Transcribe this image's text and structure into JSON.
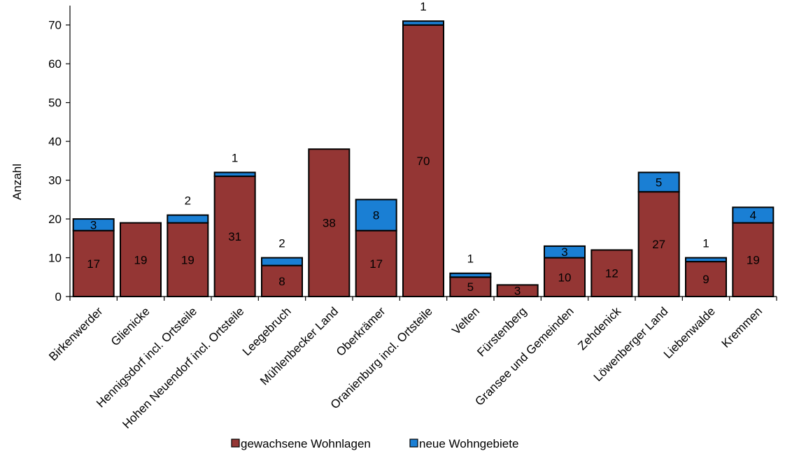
{
  "chart_data": {
    "type": "bar",
    "stacked": true,
    "categories": [
      "Birkenwerder",
      "Glienicke",
      "Hennigsdorf incl. Ortsteile",
      "Hohen Neuendorf incl. Ortsteile",
      "Leegebruch",
      "Mühlenbecker Land",
      "Oberkrämer",
      "Oranienburg incl. Ortsteile",
      "Velten",
      "Fürstenberg",
      "Gransee und Gemeinden",
      "Zehdenick",
      "Löwenberger Land",
      "Liebenwalde",
      "Kremmen"
    ],
    "series": [
      {
        "name": "gewachsene Wohnlagen",
        "color": "#943634",
        "values": [
          17,
          19,
          19,
          31,
          8,
          38,
          17,
          70,
          5,
          3,
          10,
          12,
          27,
          9,
          19
        ],
        "labels": [
          "17",
          "19",
          "19",
          "31",
          "8",
          "38",
          "17",
          "70",
          "5",
          "3",
          "10",
          "12",
          "27",
          "9",
          "19"
        ]
      },
      {
        "name": "neue Wohngebiete",
        "color": "#1a7fd4",
        "values": [
          3,
          0,
          2,
          1,
          2,
          0,
          8,
          1,
          1,
          0,
          3,
          0,
          5,
          1,
          4
        ],
        "labels": [
          "3",
          "",
          "2",
          "1",
          "2",
          "",
          "8",
          "1",
          "1",
          "",
          "3",
          "",
          "5",
          "1",
          "4"
        ]
      }
    ],
    "title": "",
    "xlabel": "",
    "ylabel": "Anzahl",
    "ylim": [
      0,
      75
    ],
    "yticks": [
      0,
      10,
      20,
      30,
      40,
      50,
      60,
      70
    ],
    "grid": false,
    "legend_position": "bottom"
  }
}
